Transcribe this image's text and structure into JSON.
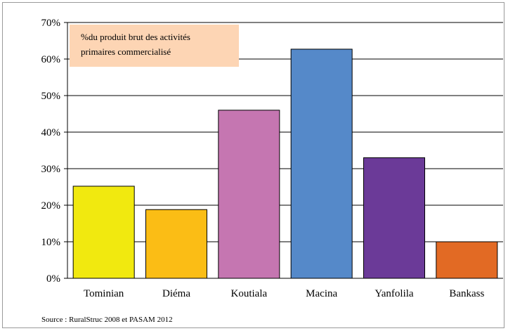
{
  "chart_data": {
    "type": "bar",
    "categories": [
      "Tominian",
      "Diéma",
      "Koutiala",
      "Macina",
      "Yanfolila",
      "Bankass"
    ],
    "values": [
      25.2,
      18.8,
      46.0,
      62.7,
      33.0,
      10.0
    ],
    "colors": [
      "#f1e90f",
      "#fbbd15",
      "#c576b1",
      "#5589c9",
      "#6b3a98",
      "#e26a24"
    ],
    "ylim": [
      0,
      70
    ],
    "yticks": [
      "0%",
      "10%",
      "20%",
      "30%",
      "40%",
      "50%",
      "60%",
      "70%"
    ],
    "ytick_values": [
      0,
      10,
      20,
      30,
      40,
      50,
      60,
      70
    ],
    "grid": true,
    "annotation": {
      "line1": "%du produit brut des activités",
      "line2": "primaires commercialisé",
      "background": "#fdd5b4"
    },
    "source": "Source :  RuralStruc 2008 et PASAM 2012"
  }
}
